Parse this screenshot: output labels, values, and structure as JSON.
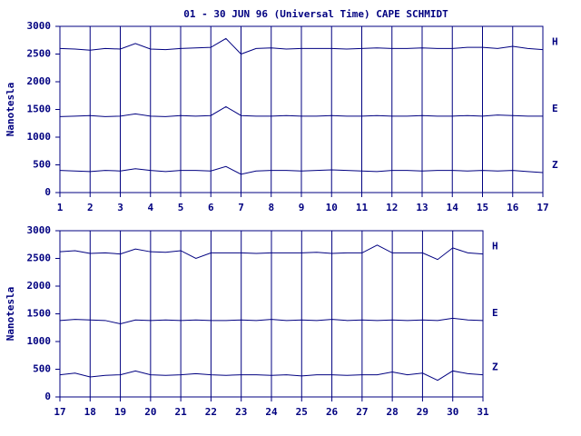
{
  "chart_data": [
    {
      "type": "line",
      "title": "01 - 30 JUN 96 (Universal Time) CAPE SCHMIDT",
      "y_label": "Nanotesla",
      "x": [
        1,
        1.5,
        2,
        2.5,
        3,
        3.5,
        4,
        4.5,
        5,
        5.5,
        6,
        6.5,
        7,
        7.5,
        8,
        8.5,
        9,
        9.5,
        10,
        10.5,
        11,
        11.5,
        12,
        12.5,
        13,
        13.5,
        14,
        14.5,
        15,
        15.5,
        16,
        16.5,
        17
      ],
      "xlim": [
        1,
        17
      ],
      "xticks": [
        1,
        2,
        3,
        4,
        5,
        6,
        7,
        8,
        9,
        10,
        11,
        12,
        13,
        14,
        15,
        16,
        17
      ],
      "ylim": [
        0,
        3000
      ],
      "yticks": [
        0,
        500,
        1000,
        1500,
        2000,
        2500,
        3000
      ],
      "grid": true,
      "series": [
        {
          "name": "H",
          "color": "#000080",
          "values": [
            2600,
            2590,
            2570,
            2600,
            2590,
            2690,
            2590,
            2580,
            2600,
            2610,
            2620,
            2780,
            2500,
            2600,
            2610,
            2590,
            2600,
            2600,
            2600,
            2590,
            2600,
            2610,
            2600,
            2600,
            2610,
            2600,
            2600,
            2620,
            2620,
            2600,
            2640,
            2600,
            2580
          ]
        },
        {
          "name": "E",
          "color": "#000080",
          "values": [
            1370,
            1380,
            1390,
            1370,
            1380,
            1420,
            1380,
            1370,
            1390,
            1380,
            1390,
            1550,
            1390,
            1380,
            1380,
            1390,
            1380,
            1380,
            1390,
            1380,
            1380,
            1390,
            1380,
            1380,
            1390,
            1380,
            1380,
            1390,
            1380,
            1400,
            1390,
            1380,
            1380
          ]
        },
        {
          "name": "Z",
          "color": "#000080",
          "values": [
            400,
            390,
            380,
            400,
            390,
            430,
            400,
            380,
            400,
            400,
            390,
            470,
            330,
            390,
            400,
            400,
            390,
            400,
            410,
            400,
            390,
            380,
            400,
            400,
            390,
            400,
            400,
            390,
            400,
            390,
            400,
            380,
            360
          ]
        }
      ]
    },
    {
      "type": "line",
      "y_label": "Nanotesla",
      "x": [
        17,
        17.5,
        18,
        18.5,
        19,
        19.5,
        20,
        20.5,
        21,
        21.5,
        22,
        22.5,
        23,
        23.5,
        24,
        24.5,
        25,
        25.5,
        26,
        26.5,
        27,
        27.5,
        28,
        28.5,
        29,
        29.5,
        30,
        30.5,
        31
      ],
      "xlim": [
        17,
        31
      ],
      "xticks": [
        17,
        18,
        19,
        20,
        21,
        22,
        23,
        24,
        25,
        26,
        27,
        28,
        29,
        30,
        31
      ],
      "ylim": [
        0,
        3000
      ],
      "yticks": [
        0,
        500,
        1000,
        1500,
        2000,
        2500,
        3000
      ],
      "grid": true,
      "series": [
        {
          "name": "H",
          "color": "#000080",
          "values": [
            2620,
            2640,
            2590,
            2600,
            2580,
            2670,
            2620,
            2610,
            2640,
            2500,
            2600,
            2600,
            2600,
            2590,
            2600,
            2600,
            2600,
            2610,
            2590,
            2600,
            2600,
            2740,
            2600,
            2600,
            2600,
            2480,
            2690,
            2600,
            2580
          ]
        },
        {
          "name": "E",
          "color": "#000080",
          "values": [
            1380,
            1400,
            1390,
            1380,
            1320,
            1390,
            1380,
            1390,
            1380,
            1390,
            1380,
            1380,
            1390,
            1380,
            1400,
            1380,
            1390,
            1380,
            1400,
            1380,
            1390,
            1380,
            1390,
            1380,
            1390,
            1380,
            1420,
            1390,
            1380
          ]
        },
        {
          "name": "Z",
          "color": "#000080",
          "values": [
            400,
            430,
            360,
            390,
            400,
            470,
            400,
            390,
            400,
            420,
            400,
            390,
            400,
            400,
            390,
            400,
            380,
            400,
            400,
            390,
            400,
            400,
            450,
            400,
            430,
            300,
            470,
            420,
            400
          ]
        }
      ]
    }
  ]
}
